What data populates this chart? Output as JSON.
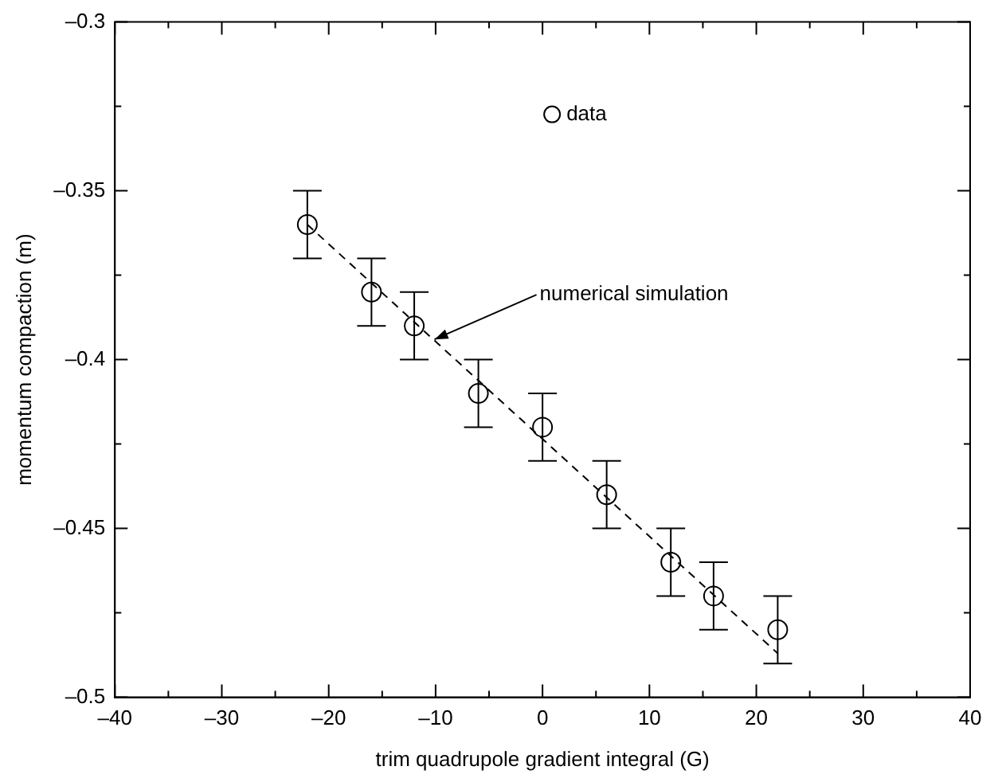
{
  "chart_data": {
    "type": "scatter",
    "xlabel": "trim quadrupole gradient integral (G)",
    "ylabel": "momentum compaction (m)",
    "x": [
      -22,
      -16,
      -12,
      -6,
      0,
      6,
      12,
      16,
      22
    ],
    "series": [
      {
        "name": "data",
        "type": "scatter",
        "color": "#000000",
        "marker": "circle",
        "values": [
          -0.36,
          -0.38,
          -0.39,
          -0.41,
          -0.42,
          -0.44,
          -0.46,
          -0.47,
          -0.48
        ],
        "errors": [
          0.01,
          0.01,
          0.01,
          0.01,
          0.01,
          0.01,
          0.01,
          0.01,
          0.01
        ]
      },
      {
        "type": "line",
        "color": "#000000",
        "line_style": "dashed",
        "marker": "none",
        "x": [
          -22,
          22
        ],
        "values": [
          -0.36,
          -0.487
        ]
      }
    ],
    "annotations": [
      {
        "text": "numerical simulation",
        "x": -10.1,
        "y": -0.394
      }
    ],
    "xlim": [
      -40,
      40
    ],
    "xticks": [
      {
        "value": -40,
        "label": "–40"
      },
      {
        "value": -35,
        "label": null
      },
      {
        "value": -30,
        "label": "–30"
      },
      {
        "value": -25,
        "label": null
      },
      {
        "value": -20,
        "label": "–20"
      },
      {
        "value": -15,
        "label": null
      },
      {
        "value": -10,
        "label": "–10"
      },
      {
        "value": -5,
        "label": null
      },
      0,
      {
        "value": 5,
        "label": null
      },
      10,
      {
        "value": 15,
        "label": null
      },
      20,
      {
        "value": 25,
        "label": null
      },
      30,
      {
        "value": 35,
        "label": null
      },
      40
    ],
    "ylim": [
      -0.5,
      -0.3
    ],
    "yticks": [
      {
        "value": -0.5,
        "label": "–0.5"
      },
      {
        "value": -0.475,
        "label": null
      },
      {
        "value": -0.45,
        "label": "–0.45"
      },
      {
        "value": -0.425,
        "label": null
      },
      {
        "value": -0.4,
        "label": "–0.4"
      },
      {
        "value": -0.375,
        "label": null
      },
      {
        "value": -0.35,
        "label": "–0.35"
      },
      {
        "value": -0.325,
        "label": null
      },
      {
        "value": -0.3,
        "label": "–0.3"
      }
    ],
    "grid": false,
    "legend": "top"
  }
}
